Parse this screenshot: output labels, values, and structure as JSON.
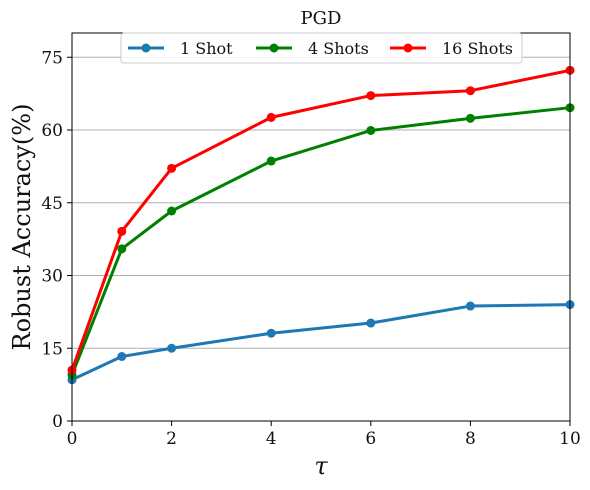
{
  "chart_data": {
    "type": "line",
    "title": "PGD",
    "xlabel": "τ",
    "ylabel": "Robust Accuracy(%)",
    "xlim": [
      0,
      10
    ],
    "ylim": [
      0,
      80
    ],
    "xticks": [
      0,
      2,
      4,
      6,
      8,
      10
    ],
    "yticks": [
      0,
      15,
      30,
      45,
      60,
      75
    ],
    "grid": "horizontal",
    "legend_position": "top-center",
    "x": [
      0,
      1,
      2,
      4,
      6,
      8,
      10
    ],
    "series": [
      {
        "name": "1 Shot",
        "color": "#1f77b4",
        "values": [
          8.5,
          13.3,
          15.0,
          18.1,
          20.2,
          23.7,
          24.0
        ]
      },
      {
        "name": "4 Shots",
        "color": "#008000",
        "values": [
          9.5,
          35.5,
          43.3,
          53.6,
          59.9,
          62.4,
          64.6
        ]
      },
      {
        "name": "16 Shots",
        "color": "#ff0000",
        "values": [
          10.5,
          39.1,
          52.1,
          62.6,
          67.1,
          68.1,
          72.3
        ]
      }
    ]
  }
}
